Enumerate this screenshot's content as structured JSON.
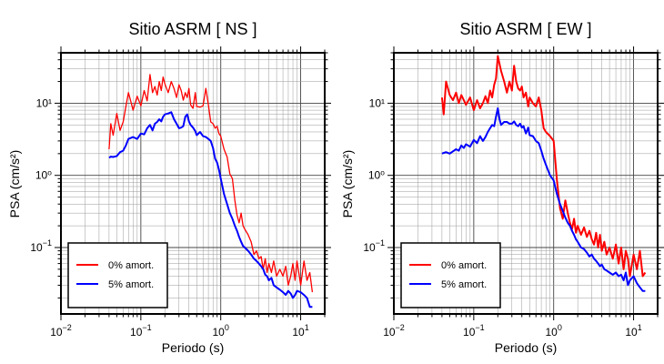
{
  "chart_data": [
    {
      "type": "line",
      "title": "Sitio ASRM [ NS ]",
      "xlabel": "Periodo (s)",
      "ylabel": "PSA (cm/s²)",
      "xscale": "log",
      "yscale": "log",
      "xlim": [
        0.01,
        20
      ],
      "ylim": [
        0.012,
        50
      ],
      "grid": true,
      "x_ticks": [
        {
          "value": 0.01,
          "base": "10",
          "exp": "−2"
        },
        {
          "value": 0.1,
          "base": "10",
          "exp": "−1"
        },
        {
          "value": 1,
          "base": "10",
          "exp": "0"
        },
        {
          "value": 10,
          "base": "10",
          "exp": "1"
        }
      ],
      "y_ticks": [
        {
          "value": 0.1,
          "base": "10",
          "exp": "−1"
        },
        {
          "value": 1,
          "label": "10⁰"
        },
        {
          "value": 10,
          "label": "10¹"
        }
      ],
      "legend_position": "bottom-left",
      "series": [
        {
          "name": "0% amort.",
          "color": "#ff0000",
          "width": 1.3,
          "x": [
            0.04,
            0.042,
            0.045,
            0.05,
            0.055,
            0.06,
            0.065,
            0.07,
            0.075,
            0.08,
            0.09,
            0.1,
            0.11,
            0.12,
            0.13,
            0.14,
            0.15,
            0.16,
            0.17,
            0.18,
            0.19,
            0.2,
            0.22,
            0.24,
            0.26,
            0.28,
            0.3,
            0.32,
            0.34,
            0.36,
            0.38,
            0.4,
            0.42,
            0.45,
            0.48,
            0.5,
            0.55,
            0.6,
            0.65,
            0.7,
            0.75,
            0.8,
            0.85,
            0.9,
            0.95,
            1.0,
            1.1,
            1.2,
            1.3,
            1.4,
            1.5,
            1.6,
            1.7,
            1.8,
            1.9,
            2.0,
            2.2,
            2.4,
            2.6,
            2.8,
            3.0,
            3.2,
            3.4,
            3.6,
            3.8,
            4.0,
            4.3,
            4.6,
            5.0,
            5.5,
            6.0,
            6.5,
            7.0,
            7.5,
            8.0,
            8.5,
            9.0,
            10,
            11,
            12,
            13,
            14
          ],
          "y": [
            2.3,
            5.2,
            3.6,
            7.2,
            4.2,
            5.5,
            9.0,
            14.0,
            10.5,
            8.0,
            12.5,
            9.2,
            15.0,
            10.8,
            25.0,
            14.0,
            17.0,
            13.0,
            20.0,
            15.0,
            23.0,
            18.5,
            14.0,
            20.0,
            16.0,
            12.0,
            18.0,
            15.0,
            11.0,
            14.0,
            12.0,
            16.0,
            9.5,
            8.5,
            14.0,
            9.0,
            8.8,
            9.2,
            16.0,
            9.5,
            5.5,
            5.2,
            4.5,
            4.8,
            3.8,
            3.5,
            2.3,
            1.8,
            1.05,
            0.9,
            0.45,
            0.28,
            0.22,
            0.3,
            0.2,
            0.18,
            0.15,
            0.12,
            0.08,
            0.09,
            0.07,
            0.075,
            0.05,
            0.07,
            0.045,
            0.06,
            0.045,
            0.065,
            0.04,
            0.05,
            0.04,
            0.055,
            0.03,
            0.04,
            0.06,
            0.035,
            0.065,
            0.03,
            0.065,
            0.035,
            0.045,
            0.024
          ]
        },
        {
          "name": "5% amort.",
          "color": "#0000ff",
          "width": 2,
          "x": [
            0.04,
            0.042,
            0.045,
            0.05,
            0.055,
            0.06,
            0.065,
            0.07,
            0.075,
            0.08,
            0.09,
            0.1,
            0.11,
            0.12,
            0.13,
            0.14,
            0.15,
            0.16,
            0.17,
            0.18,
            0.19,
            0.2,
            0.22,
            0.24,
            0.26,
            0.28,
            0.3,
            0.32,
            0.34,
            0.36,
            0.38,
            0.4,
            0.42,
            0.45,
            0.48,
            0.5,
            0.55,
            0.6,
            0.65,
            0.7,
            0.75,
            0.8,
            0.85,
            0.9,
            0.95,
            1.0,
            1.1,
            1.2,
            1.3,
            1.4,
            1.5,
            1.6,
            1.7,
            1.8,
            1.9,
            2.0,
            2.2,
            2.4,
            2.6,
            2.8,
            3.0,
            3.2,
            3.4,
            3.6,
            3.8,
            4.0,
            4.3,
            4.6,
            5.0,
            5.5,
            6.0,
            6.5,
            7.0,
            7.5,
            8.0,
            8.5,
            9.0,
            10,
            11,
            12,
            13,
            14
          ],
          "y": [
            1.75,
            1.82,
            1.8,
            1.85,
            2.1,
            2.2,
            2.6,
            3.2,
            3.3,
            3.4,
            3.2,
            3.8,
            3.7,
            4.5,
            5.0,
            4.2,
            5.2,
            5.5,
            6.0,
            5.6,
            6.5,
            7.0,
            7.2,
            7.5,
            6.0,
            5.2,
            4.5,
            4.6,
            4.8,
            6.5,
            7.0,
            5.6,
            5.0,
            4.6,
            4.1,
            3.6,
            4.0,
            3.5,
            3.4,
            3.2,
            3.0,
            2.4,
            1.7,
            1.5,
            1.2,
            0.9,
            0.55,
            0.4,
            0.3,
            0.25,
            0.2,
            0.17,
            0.14,
            0.12,
            0.105,
            0.1,
            0.09,
            0.08,
            0.07,
            0.065,
            0.06,
            0.055,
            0.05,
            0.042,
            0.04,
            0.035,
            0.038,
            0.03,
            0.028,
            0.026,
            0.024,
            0.022,
            0.025,
            0.023,
            0.02,
            0.022,
            0.025,
            0.024,
            0.022,
            0.02,
            0.015,
            0.015
          ]
        }
      ]
    },
    {
      "type": "line",
      "title": "Sitio ASRM [ EW ]",
      "xlabel": "Periodo (s)",
      "ylabel": "PSA (cm/s²)",
      "xscale": "log",
      "yscale": "log",
      "xlim": [
        0.01,
        20
      ],
      "ylim": [
        0.012,
        50
      ],
      "grid": true,
      "x_ticks": [
        {
          "value": 0.01,
          "base": "10",
          "exp": "−2"
        },
        {
          "value": 0.1,
          "base": "10",
          "exp": "−1"
        },
        {
          "value": 1,
          "base": "10",
          "exp": "0"
        },
        {
          "value": 10,
          "base": "10",
          "exp": "1"
        }
      ],
      "y_ticks": [
        {
          "value": 0.1,
          "base": "10",
          "exp": "−1"
        },
        {
          "value": 1,
          "label": "10⁰"
        },
        {
          "value": 10,
          "label": "10¹"
        }
      ],
      "legend_position": "bottom-left",
      "series": [
        {
          "name": "0% amort.",
          "color": "#ff0000",
          "width": 2,
          "x": [
            0.04,
            0.042,
            0.045,
            0.05,
            0.055,
            0.06,
            0.065,
            0.07,
            0.075,
            0.08,
            0.09,
            0.1,
            0.11,
            0.12,
            0.13,
            0.14,
            0.15,
            0.16,
            0.17,
            0.18,
            0.19,
            0.2,
            0.21,
            0.22,
            0.24,
            0.26,
            0.28,
            0.3,
            0.32,
            0.34,
            0.36,
            0.38,
            0.4,
            0.42,
            0.45,
            0.48,
            0.5,
            0.55,
            0.6,
            0.65,
            0.7,
            0.75,
            0.8,
            0.9,
            1.0,
            1.1,
            1.2,
            1.3,
            1.4,
            1.5,
            1.6,
            1.7,
            1.8,
            1.9,
            2.0,
            2.2,
            2.4,
            2.6,
            2.8,
            3.0,
            3.2,
            3.4,
            3.6,
            3.8,
            4.0,
            4.3,
            4.6,
            5.0,
            5.5,
            6.0,
            6.5,
            7.0,
            7.5,
            8.0,
            8.5,
            9.0,
            10,
            11,
            12,
            13,
            14
          ],
          "y": [
            12.0,
            7.0,
            20.0,
            13.0,
            11.0,
            14.0,
            10.0,
            13.0,
            11.0,
            9.5,
            12.0,
            8.0,
            11.0,
            8.5,
            10.0,
            12.5,
            10.0,
            15.0,
            12.0,
            18.0,
            22.0,
            45.0,
            35.0,
            28.0,
            20.0,
            14.0,
            20.0,
            15.0,
            33.0,
            20.0,
            16.0,
            15.0,
            17.0,
            12.0,
            14.0,
            9.0,
            12.0,
            10.0,
            9.0,
            12.0,
            8.0,
            4.5,
            4.0,
            3.5,
            3.0,
            0.85,
            0.35,
            0.25,
            0.45,
            0.3,
            0.22,
            0.18,
            0.25,
            0.16,
            0.2,
            0.15,
            0.19,
            0.14,
            0.17,
            0.13,
            0.11,
            0.16,
            0.1,
            0.15,
            0.09,
            0.12,
            0.08,
            0.1,
            0.07,
            0.11,
            0.06,
            0.1,
            0.05,
            0.09,
            0.07,
            0.04,
            0.08,
            0.05,
            0.09,
            0.04,
            0.045
          ]
        },
        {
          "name": "5% amort.",
          "color": "#0000ff",
          "width": 2,
          "x": [
            0.04,
            0.042,
            0.045,
            0.05,
            0.055,
            0.06,
            0.065,
            0.07,
            0.075,
            0.08,
            0.09,
            0.1,
            0.11,
            0.12,
            0.13,
            0.14,
            0.15,
            0.16,
            0.17,
            0.18,
            0.19,
            0.2,
            0.21,
            0.22,
            0.24,
            0.26,
            0.28,
            0.3,
            0.32,
            0.34,
            0.36,
            0.38,
            0.4,
            0.42,
            0.45,
            0.48,
            0.5,
            0.55,
            0.6,
            0.65,
            0.7,
            0.75,
            0.8,
            0.9,
            1.0,
            1.1,
            1.2,
            1.3,
            1.4,
            1.5,
            1.6,
            1.7,
            1.8,
            1.9,
            2.0,
            2.2,
            2.4,
            2.6,
            2.8,
            3.0,
            3.2,
            3.4,
            3.6,
            3.8,
            4.0,
            4.3,
            4.6,
            5.0,
            5.5,
            6.0,
            6.5,
            7.0,
            7.5,
            8.0,
            8.5,
            9.0,
            10,
            11,
            12,
            13,
            14
          ],
          "y": [
            2.0,
            2.05,
            2.1,
            2.0,
            2.15,
            2.3,
            2.2,
            2.6,
            2.4,
            2.7,
            2.5,
            3.1,
            2.8,
            3.5,
            3.0,
            3.4,
            4.0,
            4.5,
            5.0,
            4.8,
            6.5,
            8.5,
            6.0,
            5.0,
            5.5,
            5.5,
            5.2,
            5.2,
            5.6,
            5.0,
            4.8,
            5.2,
            4.6,
            4.8,
            3.8,
            4.6,
            3.6,
            3.5,
            3.0,
            2.8,
            2.2,
            1.7,
            1.4,
            1.0,
            0.85,
            0.55,
            0.4,
            0.32,
            0.26,
            0.22,
            0.2,
            0.17,
            0.15,
            0.13,
            0.12,
            0.1,
            0.095,
            0.085,
            0.075,
            0.08,
            0.07,
            0.065,
            0.06,
            0.055,
            0.058,
            0.05,
            0.048,
            0.045,
            0.042,
            0.045,
            0.04,
            0.042,
            0.035,
            0.045,
            0.03,
            0.035,
            0.04,
            0.032,
            0.028,
            0.025,
            0.025
          ]
        }
      ]
    }
  ]
}
